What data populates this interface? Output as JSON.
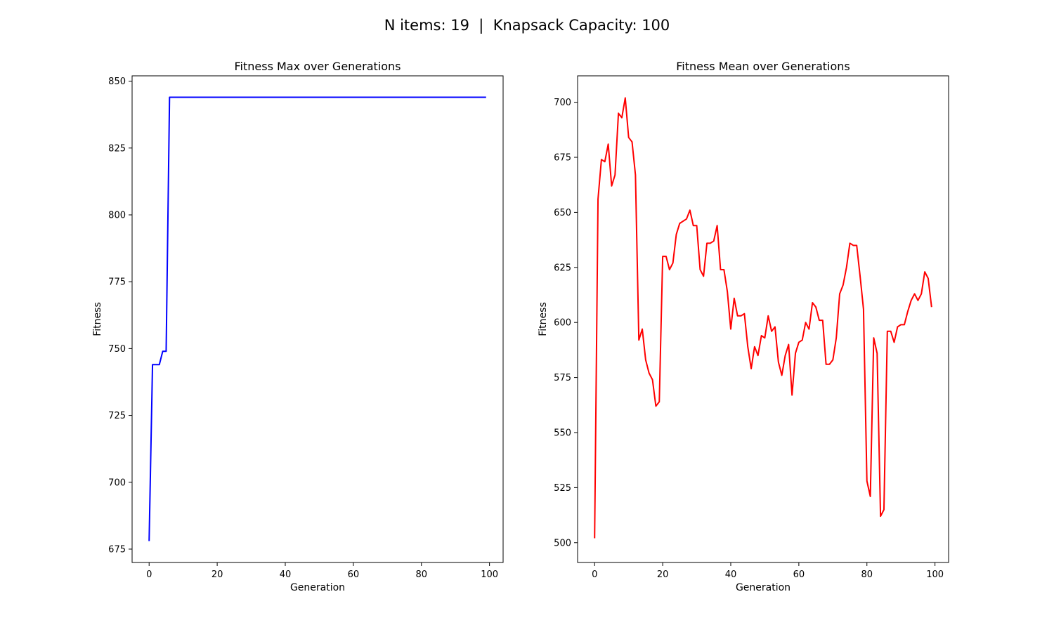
{
  "figure_title": "N items: 19  |  Knapsack Capacity: 100",
  "chart_data": [
    {
      "type": "line",
      "title": "Fitness Max over Generations",
      "xlabel": "Generation",
      "ylabel": "Fitness",
      "color": "#0000ff",
      "xlim": [
        -5,
        104
      ],
      "ylim": [
        670,
        852
      ],
      "xticks": [
        0,
        20,
        40,
        60,
        80,
        100
      ],
      "yticks": [
        675,
        700,
        725,
        750,
        775,
        800,
        825,
        850
      ],
      "grid": false,
      "series": [
        {
          "x": [
            0,
            1,
            2,
            3,
            4,
            5,
            6,
            7,
            8,
            9,
            10,
            11,
            12,
            13,
            14,
            15,
            16,
            17,
            18,
            19,
            20,
            21,
            22,
            23,
            24,
            25,
            26,
            27,
            28,
            29,
            30,
            31,
            32,
            33,
            34,
            35,
            36,
            37,
            38,
            39,
            40,
            41,
            42,
            43,
            44,
            45,
            46,
            47,
            48,
            49,
            50,
            51,
            52,
            53,
            54,
            55,
            56,
            57,
            58,
            59,
            60,
            61,
            62,
            63,
            64,
            65,
            66,
            67,
            68,
            69,
            70,
            71,
            72,
            73,
            74,
            75,
            76,
            77,
            78,
            79,
            80,
            81,
            82,
            83,
            84,
            85,
            86,
            87,
            88,
            89,
            90,
            91,
            92,
            93,
            94,
            95,
            96,
            97,
            98,
            99
          ],
          "values": [
            678,
            744,
            744,
            744,
            749,
            749,
            844,
            844,
            844,
            844,
            844,
            844,
            844,
            844,
            844,
            844,
            844,
            844,
            844,
            844,
            844,
            844,
            844,
            844,
            844,
            844,
            844,
            844,
            844,
            844,
            844,
            844,
            844,
            844,
            844,
            844,
            844,
            844,
            844,
            844,
            844,
            844,
            844,
            844,
            844,
            844,
            844,
            844,
            844,
            844,
            844,
            844,
            844,
            844,
            844,
            844,
            844,
            844,
            844,
            844,
            844,
            844,
            844,
            844,
            844,
            844,
            844,
            844,
            844,
            844,
            844,
            844,
            844,
            844,
            844,
            844,
            844,
            844,
            844,
            844,
            844,
            844,
            844,
            844,
            844,
            844,
            844,
            844,
            844,
            844,
            844,
            844,
            844,
            844,
            844,
            844,
            844,
            844,
            844,
            844
          ]
        }
      ]
    },
    {
      "type": "line",
      "title": "Fitness Mean over Generations",
      "xlabel": "Generation",
      "ylabel": "Fitness",
      "color": "#ff0000",
      "xlim": [
        -5,
        104
      ],
      "ylim": [
        491,
        712
      ],
      "xticks": [
        0,
        20,
        40,
        60,
        80,
        100
      ],
      "yticks": [
        500,
        525,
        550,
        575,
        600,
        625,
        650,
        675,
        700
      ],
      "grid": false,
      "series": [
        {
          "x": [
            0,
            1,
            2,
            3,
            4,
            5,
            6,
            7,
            8,
            9,
            10,
            11,
            12,
            13,
            14,
            15,
            16,
            17,
            18,
            19,
            20,
            21,
            22,
            23,
            24,
            25,
            26,
            27,
            28,
            29,
            30,
            31,
            32,
            33,
            34,
            35,
            36,
            37,
            38,
            39,
            40,
            41,
            42,
            43,
            44,
            45,
            46,
            47,
            48,
            49,
            50,
            51,
            52,
            53,
            54,
            55,
            56,
            57,
            58,
            59,
            60,
            61,
            62,
            63,
            64,
            65,
            66,
            67,
            68,
            69,
            70,
            71,
            72,
            73,
            74,
            75,
            76,
            77,
            78,
            79,
            80,
            81,
            82,
            83,
            84,
            85,
            86,
            87,
            88,
            89,
            90,
            91,
            92,
            93,
            94,
            95,
            96,
            97,
            98,
            99
          ],
          "values": [
            502,
            656,
            674,
            673,
            681,
            662,
            667,
            695,
            693,
            702,
            684,
            682,
            667,
            592,
            597,
            583,
            577,
            574,
            562,
            564,
            630,
            630,
            624,
            627,
            640,
            645,
            646,
            647,
            651,
            644,
            644,
            624,
            621,
            636,
            636,
            637,
            644,
            624,
            624,
            614,
            597,
            611,
            603,
            603,
            604,
            589,
            579,
            589,
            585,
            594,
            593,
            603,
            596,
            598,
            582,
            576,
            585,
            590,
            567,
            586,
            591,
            592,
            600,
            597,
            609,
            607,
            601,
            601,
            581,
            581,
            583,
            593,
            613,
            617,
            625,
            636,
            635,
            635,
            621,
            606,
            528,
            521,
            593,
            586,
            512,
            515,
            596,
            596,
            591,
            598,
            599,
            599,
            605,
            610,
            613,
            610,
            613,
            623,
            620,
            607
          ]
        }
      ]
    }
  ]
}
